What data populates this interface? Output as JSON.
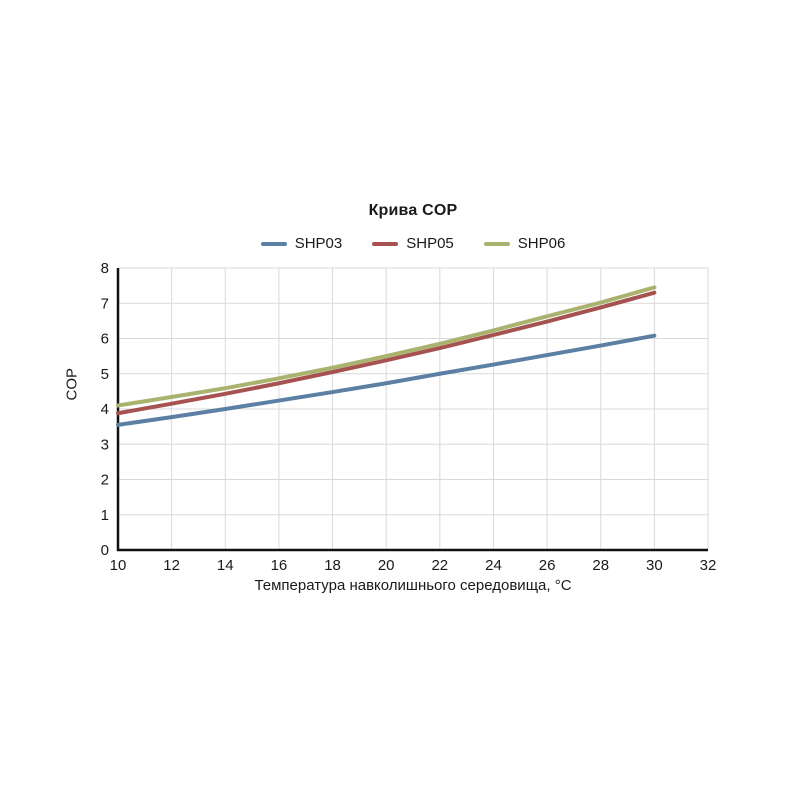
{
  "title": "Крива COP",
  "legend": [
    {
      "label": "SHP03",
      "color": "#5b80a4"
    },
    {
      "label": "SHP05",
      "color": "#a65251"
    },
    {
      "label": "SHP06",
      "color": "#aab36e"
    }
  ],
  "axes": {
    "x_label": "Температура навколишнього середовища, °C",
    "y_label": "COP"
  },
  "colors": {
    "grid": "#d9d9d9",
    "axis": "#111111",
    "tick_text": "#1a1a1a",
    "background": "#ffffff"
  },
  "chart_data": {
    "type": "line",
    "title": "Крива COP",
    "xlabel": "Температура навколишнього середовища, °C",
    "ylabel": "COP",
    "xlim": [
      10,
      32
    ],
    "ylim": [
      0,
      8
    ],
    "x_ticks": [
      10,
      12,
      14,
      16,
      18,
      20,
      22,
      24,
      26,
      28,
      30,
      32
    ],
    "y_ticks": [
      0,
      1,
      2,
      3,
      4,
      5,
      6,
      7,
      8
    ],
    "grid": true,
    "legend_position": "top",
    "x": [
      10,
      12,
      14,
      16,
      18,
      20,
      22,
      24,
      26,
      28,
      30
    ],
    "series": [
      {
        "name": "SHP03",
        "color": "#5b80a4",
        "values": [
          3.55,
          3.77,
          4.0,
          4.24,
          4.48,
          4.73,
          5.0,
          5.26,
          5.53,
          5.8,
          6.08
        ]
      },
      {
        "name": "SHP05",
        "color": "#a65251",
        "values": [
          3.88,
          4.15,
          4.43,
          4.73,
          5.05,
          5.38,
          5.73,
          6.1,
          6.48,
          6.88,
          7.3
        ]
      },
      {
        "name": "SHP06",
        "color": "#aab36e",
        "values": [
          4.1,
          4.34,
          4.59,
          4.87,
          5.17,
          5.5,
          5.85,
          6.23,
          6.63,
          7.02,
          7.45
        ]
      }
    ]
  }
}
